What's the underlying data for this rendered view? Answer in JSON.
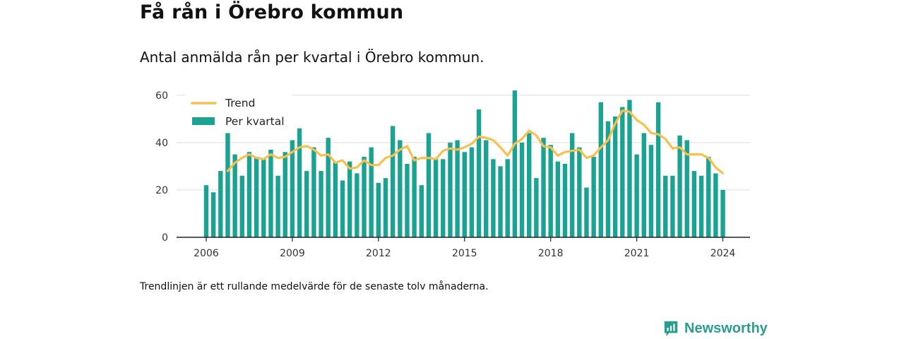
{
  "title": "Få rån i Örebro kommun",
  "subtitle": "Antal anmälda rån per kvartal i Örebro kommun.",
  "note": "Trendlinjen är ett rullande medelvärde för de senaste tolv månaderna.",
  "brand": {
    "name": "Newsworthy",
    "color": "#2a9d8f"
  },
  "colors": {
    "bars": "#1aa393",
    "trend": "#f5c04f",
    "grid": "#dddddd",
    "axis": "#222222"
  },
  "chart_data": {
    "type": "bar",
    "x_start": "2006 Q1",
    "x_ticks": [
      "2006",
      "2009",
      "2012",
      "2015",
      "2018",
      "2021",
      "2024"
    ],
    "y_ticks": [
      0,
      20,
      40,
      60
    ],
    "ylim": [
      0,
      65
    ],
    "grid": true,
    "legend_position": "top-left",
    "series": [
      {
        "name": "Per kvartal",
        "type": "bar",
        "values": [
          22,
          19,
          28,
          44,
          35,
          26,
          36,
          34,
          33,
          37,
          26,
          36,
          41,
          46,
          28,
          38,
          28,
          42,
          32,
          24,
          32,
          27,
          34,
          38,
          23,
          25,
          47,
          41,
          31,
          34,
          22,
          44,
          33,
          33,
          40,
          41,
          36,
          38,
          54,
          41,
          33,
          30,
          33,
          62,
          40,
          44,
          25,
          42,
          39,
          32,
          31,
          44,
          38,
          21,
          34,
          57,
          49,
          51,
          55,
          58,
          35,
          44,
          39,
          57,
          26,
          26,
          43,
          41,
          28,
          26,
          34,
          27,
          20
        ]
      },
      {
        "name": "Trend",
        "type": "line",
        "values": [
          null,
          null,
          null,
          28,
          31.5,
          33.5,
          35,
          33.5,
          33,
          35,
          33.5,
          34,
          36,
          38,
          38.5,
          37,
          34.5,
          35,
          31.5,
          32.5,
          29,
          29.5,
          32.5,
          30.5,
          30.5,
          33.5,
          34.5,
          37,
          38.5,
          32.5,
          33.5,
          33.5,
          33,
          36.5,
          37.5,
          37,
          38,
          39.5,
          42.5,
          42,
          41,
          38,
          34.5,
          39.5,
          41.5,
          45,
          43,
          38.5,
          38,
          34.5,
          36,
          36.5,
          37,
          33.5,
          34.5,
          38,
          41,
          48,
          53.5,
          53,
          49.5,
          47.5,
          44,
          43.5,
          41.5,
          37.5,
          38,
          35,
          35,
          35,
          33.5,
          29.5,
          27
        ]
      }
    ]
  }
}
